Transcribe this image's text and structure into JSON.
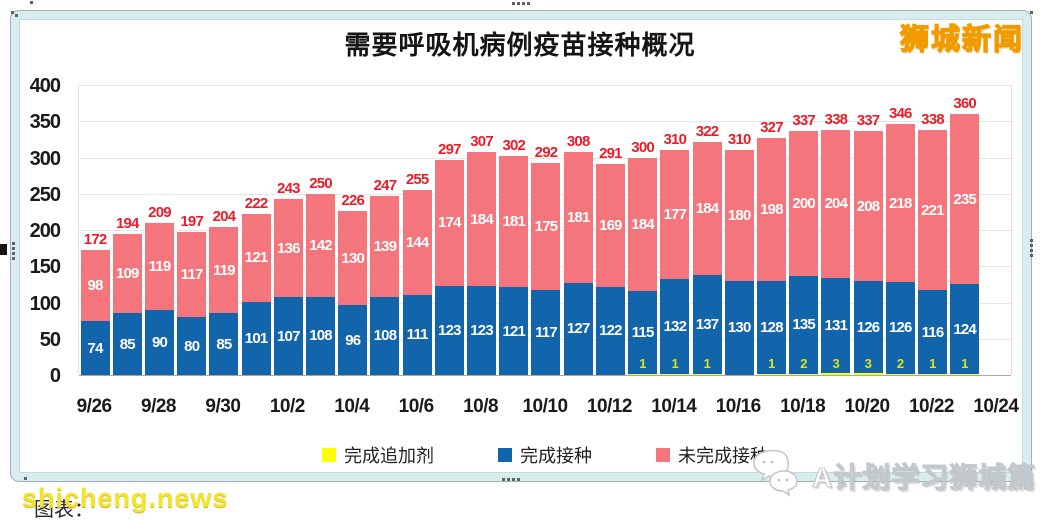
{
  "page": {
    "brand_top_right": "狮城新闻",
    "watermark_bottom_left": "shicheng.news",
    "caption_behind_watermark": "图表：",
    "brand_bottom_right": "A计划学习狮城篇"
  },
  "chart_data": {
    "type": "bar",
    "stacked": true,
    "title": "需要呼吸机病例疫苗接种概况",
    "categories": [
      "9/26",
      "9/27",
      "9/28",
      "9/29",
      "9/30",
      "10/1",
      "10/2",
      "10/3",
      "10/4",
      "10/5",
      "10/6",
      "10/7",
      "10/8",
      "10/9",
      "10/10",
      "10/11",
      "10/12",
      "10/13",
      "10/14",
      "10/15",
      "10/16",
      "10/17",
      "10/18",
      "10/19",
      "10/20",
      "10/21",
      "10/22",
      "10/23"
    ],
    "x_tick_labels": [
      "9/26",
      "9/28",
      "9/30",
      "10/2",
      "10/4",
      "10/6",
      "10/8",
      "10/10",
      "10/12",
      "10/14",
      "10/16",
      "10/18",
      "10/20",
      "10/22",
      "10/24"
    ],
    "y_ticks": [
      0,
      50,
      100,
      150,
      200,
      250,
      300,
      350,
      400
    ],
    "ylim": [
      0,
      400
    ],
    "grid": true,
    "legend_position": "bottom",
    "series": [
      {
        "name": "完成追加剂",
        "color": "#ffff00",
        "values": [
          0,
          0,
          0,
          0,
          0,
          0,
          0,
          0,
          0,
          0,
          0,
          0,
          0,
          0,
          0,
          0,
          0,
          1,
          1,
          1,
          0,
          1,
          2,
          3,
          3,
          2,
          1,
          1
        ]
      },
      {
        "name": "完成接种",
        "color": "#1265ab",
        "values": [
          74,
          85,
          90,
          80,
          85,
          101,
          107,
          108,
          96,
          108,
          111,
          123,
          123,
          121,
          117,
          127,
          122,
          115,
          132,
          137,
          130,
          128,
          135,
          131,
          126,
          126,
          116,
          124
        ]
      },
      {
        "name": "未完成接种",
        "color": "#f4767c",
        "values": [
          98,
          109,
          119,
          117,
          119,
          121,
          136,
          142,
          130,
          139,
          144,
          174,
          184,
          181,
          175,
          181,
          169,
          184,
          177,
          184,
          180,
          198,
          200,
          204,
          208,
          218,
          221,
          235
        ]
      }
    ],
    "totals": [
      172,
      194,
      209,
      197,
      204,
      222,
      243,
      250,
      226,
      247,
      255,
      297,
      307,
      302,
      292,
      308,
      291,
      300,
      310,
      322,
      310,
      327,
      337,
      338,
      337,
      346,
      338,
      360
    ]
  },
  "colors": {
    "total_label": "#ed1c2a",
    "segment_label": "#ffffff",
    "booster_label": "#dde21f",
    "frame_band": "#d9edef",
    "brand_yellow": "#ffe94d",
    "brand_outline": "#f29b00"
  }
}
